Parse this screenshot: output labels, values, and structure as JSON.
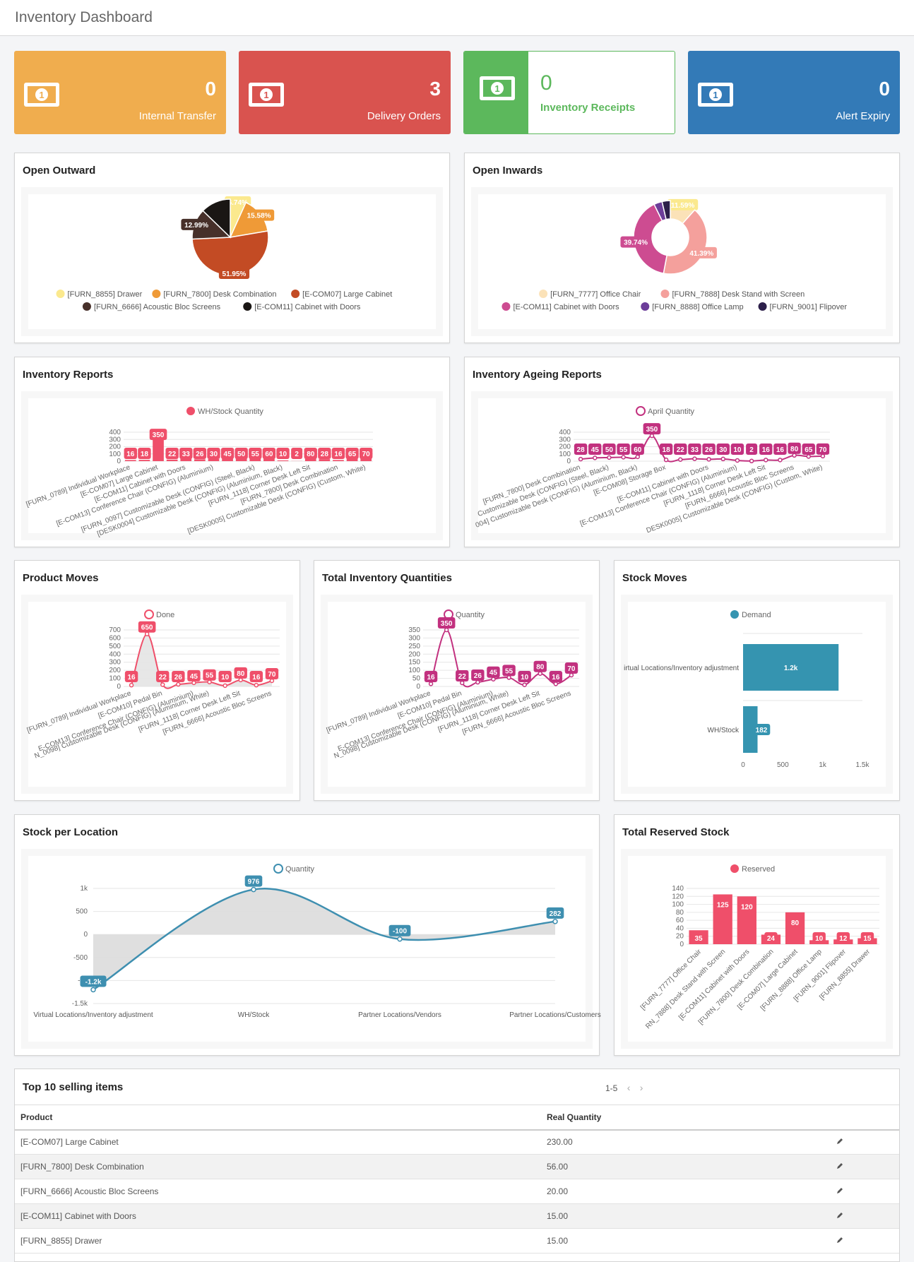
{
  "header": {
    "title": "Inventory Dashboard"
  },
  "stats": [
    {
      "value": "0",
      "label": "Internal Transfer",
      "color": "#f0ad4e"
    },
    {
      "value": "3",
      "label": "Delivery Orders",
      "color": "#d9534f"
    },
    {
      "value": "0",
      "label": "Inventory Receipts",
      "color": "#5cb85c"
    },
    {
      "value": "0",
      "label": "Alert Expiry",
      "color": "#337ab7"
    }
  ],
  "panels": {
    "open_outward": "Open Outward",
    "open_inwards": "Open Inwards",
    "inventory_reports": "Inventory Reports",
    "ageing_reports": "Inventory Ageing Reports",
    "product_moves": "Product Moves",
    "total_inventory": "Total Inventory Quantities",
    "stock_moves": "Stock Moves",
    "stock_per_location": "Stock per Location",
    "total_reserved": "Total Reserved Stock"
  },
  "chart_data": [
    {
      "id": "open_outward",
      "type": "pie",
      "labels": [
        "[FURN_8855] Drawer",
        "[FURN_7800] Desk Combination",
        "[E-COM07] Large Cabinet",
        "[FURN_6666] Acoustic Bloc Screens",
        "[E-COM11] Cabinet with Doors"
      ],
      "values": [
        6.74,
        15.58,
        51.95,
        12.99,
        12.74
      ],
      "data_labels": [
        "6.74%",
        "15.58%",
        "51.95%",
        "12.99%",
        ""
      ],
      "colors": [
        "#fbe98e",
        "#ef9a37",
        "#c34b24",
        "#47302a",
        "#1a1614"
      ]
    },
    {
      "id": "open_inwards",
      "type": "pie",
      "labels": [
        "[FURN_7777] Office Chair",
        "[FURN_7888] Desk Stand with Screen",
        "[E-COM11] Cabinet with Doors",
        "[FURN_8888] Office Lamp",
        "[FURN_9001] Flipover"
      ],
      "values": [
        11.59,
        41.39,
        39.74,
        3.64,
        3.64
      ],
      "data_labels": [
        "11.59%",
        "41.39%",
        "39.74%",
        "",
        ""
      ],
      "colors": [
        "#fbe2b8",
        "#f4a09c",
        "#cd4c91",
        "#6c3d99",
        "#2c1f4a"
      ]
    },
    {
      "id": "inventory_reports",
      "type": "bar",
      "legend": "WH/Stock Quantity",
      "color": "#ef4f6a",
      "yticks": [
        "0",
        "100",
        "200",
        "300",
        "400"
      ],
      "ylim": [
        0,
        400
      ],
      "values": [
        16,
        18,
        350,
        22,
        33,
        26,
        30,
        45,
        50,
        55,
        60,
        10,
        2,
        80,
        28,
        16,
        65,
        70
      ],
      "xlabels": [
        "[FURN_0789] Individual Workplace",
        "[E-COM07] Large Cabinet",
        "[E-COM11] Cabinet with Doors",
        "[E-COM13] Conference Chair (CONFIG) (Aluminium)",
        "[FURN_0097] Customizable Desk (CONFIG) (Steel, Black)",
        "[DESK0004] Customizable Desk (CONFIG) (Aluminium, Black)",
        "[FURN_1118] Corner Desk Left Sit",
        "[FURN_7800] Desk Combination",
        "[DESK0005] Customizable Desk (CONFIG) (Custom, White)"
      ]
    },
    {
      "id": "ageing_reports",
      "type": "line",
      "legend": "April Quantity",
      "color": "#c2317f",
      "yticks": [
        "0",
        "100",
        "200",
        "300",
        "400"
      ],
      "ylim": [
        0,
        400
      ],
      "values": [
        28,
        45,
        50,
        55,
        60,
        350,
        18,
        22,
        33,
        26,
        30,
        10,
        2,
        16,
        16,
        80,
        65,
        70
      ],
      "xlabels": [
        "[FURN_7800] Desk Combination",
        "Customizable Desk (CONFIG) (Steel, Black)",
        "004] Customizable Desk (CONFIG) (Aluminium, Black)",
        "[E-COM08] Storage Box",
        "[E-COM11] Cabinet with Doors",
        "[E-COM13] Conference Chair (CONFIG) (Aluminium)",
        "[FURN_1118] Corner Desk Left Sit",
        "[FURN_6666] Acoustic Bloc Screens",
        "DESK0005] Customizable Desk (CONFIG) (Custom, White)"
      ]
    },
    {
      "id": "product_moves",
      "type": "area",
      "legend": "Done",
      "color": "#ef4f6a",
      "yticks": [
        "0",
        "100",
        "200",
        "300",
        "400",
        "500",
        "600",
        "700"
      ],
      "ylim": [
        0,
        700
      ],
      "values": [
        16,
        650,
        22,
        26,
        45,
        55,
        10,
        80,
        16,
        70
      ],
      "xlabels": [
        "[FURN_0789] Individual Workplace",
        "[E-COM10] Pedal Bin",
        "E-COM13] Conference Chair (CONFIG) (Aluminium)",
        "N_0098] Customizable Desk (CONFIG) (Aluminium, White)",
        "[FURN_1118] Corner Desk Left Sit",
        "[FURN_6666] Acoustic Bloc Screens"
      ]
    },
    {
      "id": "total_inventory",
      "type": "line",
      "legend": "Quantity",
      "color": "#c2317f",
      "yticks": [
        "0",
        "50",
        "100",
        "150",
        "200",
        "250",
        "300",
        "350"
      ],
      "ylim": [
        0,
        350
      ],
      "values": [
        16,
        350,
        22,
        26,
        45,
        55,
        10,
        80,
        16,
        70
      ],
      "xlabels": [
        "[FURN_0789] Individual Workplace",
        "[E-COM10] Pedal Bin",
        "E-COM13] Conference Chair (CONFIG) (Aluminium)",
        "N_0098] Customizable Desk (CONFIG) (Aluminium, White)",
        "[FURN_1118] Corner Desk Left Sit",
        "[FURN_6666] Acoustic Bloc Screens"
      ]
    },
    {
      "id": "stock_moves",
      "type": "bar-horizontal",
      "legend": "Demand",
      "color": "#3594b0",
      "categories": [
        "irtual Locations/Inventory adjustment",
        "WH/Stock"
      ],
      "values": [
        1200,
        182
      ],
      "data_labels": [
        "1.2k",
        "182"
      ],
      "xticks": [
        "0",
        "500",
        "1k",
        "1.5k"
      ],
      "xlim": [
        0,
        1500
      ]
    },
    {
      "id": "stock_per_location",
      "type": "area",
      "legend": "Quantity",
      "color": "#3e8fb0",
      "categories": [
        "Virtual Locations/Inventory adjustment",
        "WH/Stock",
        "Partner Locations/Vendors",
        "Partner Locations/Customers"
      ],
      "values": [
        -1200,
        976,
        -100,
        282
      ],
      "data_labels": [
        "-1.2k",
        "976",
        "-100",
        "282"
      ],
      "yticks": [
        "-1.5k",
        "-1k",
        "-500",
        "0",
        "500",
        "1k"
      ],
      "ylim": [
        -1500,
        1000
      ]
    },
    {
      "id": "total_reserved",
      "type": "bar",
      "legend": "Reserved",
      "color": "#ef4f6a",
      "categories": [
        "[FURN_7777] Office Chair",
        "RN_7888] Desk Stand with Screen",
        "[E-COM11] Cabinet with Doors",
        "[FURN_7800] Desk Combination",
        "[E-COM07] Large Cabinet",
        "[FURN_8888] Office Lamp",
        "[FURN_9001] Flipover",
        "[FURN_8855] Drawer"
      ],
      "values": [
        35,
        125,
        120,
        24,
        80,
        10,
        12,
        15
      ],
      "yticks": [
        "0",
        "20",
        "40",
        "60",
        "80",
        "100",
        "120",
        "140"
      ],
      "ylim": [
        0,
        140
      ]
    }
  ],
  "top_selling": {
    "title": "Top 10 selling items",
    "pager": "1-5",
    "columns": [
      "Product",
      "Real Quantity"
    ],
    "rows": [
      [
        "[E-COM07] Large Cabinet",
        "230.00"
      ],
      [
        "[FURN_7800] Desk Combination",
        "56.00"
      ],
      [
        "[FURN_6666] Acoustic Bloc Screens",
        "20.00"
      ],
      [
        "[E-COM11] Cabinet with Doors",
        "15.00"
      ],
      [
        "[FURN_8855] Drawer",
        "15.00"
      ]
    ]
  }
}
